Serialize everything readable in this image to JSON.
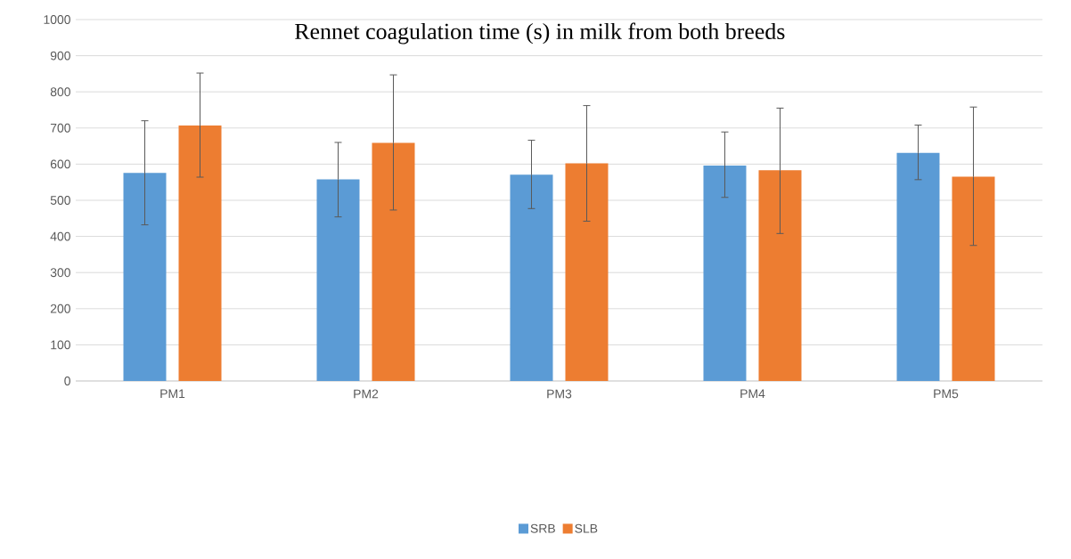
{
  "chart_data": {
    "type": "bar",
    "title": "Rennet coagulation time (s) in milk from both breeds",
    "categories": [
      "PM1",
      "PM2",
      "PM3",
      "PM4",
      "PM5"
    ],
    "series": [
      {
        "name": "SRB",
        "color": "#5b9bd5",
        "values": [
          576,
          558,
          571,
          596,
          631
        ],
        "errors": [
          [
            432,
            720
          ],
          [
            454,
            660
          ],
          [
            477,
            666
          ],
          [
            508,
            689
          ],
          [
            557,
            708
          ]
        ]
      },
      {
        "name": "SLB",
        "color": "#ed7d31",
        "values": [
          707,
          659,
          602,
          583,
          565
        ],
        "errors": [
          [
            564,
            852
          ],
          [
            473,
            847
          ],
          [
            442,
            762
          ],
          [
            408,
            755
          ],
          [
            375,
            758
          ]
        ]
      }
    ],
    "ylim": [
      0,
      1000
    ],
    "yticks": [
      0,
      100,
      200,
      300,
      400,
      500,
      600,
      700,
      800,
      900,
      1000
    ],
    "grid": "y",
    "legend": "bottom"
  }
}
